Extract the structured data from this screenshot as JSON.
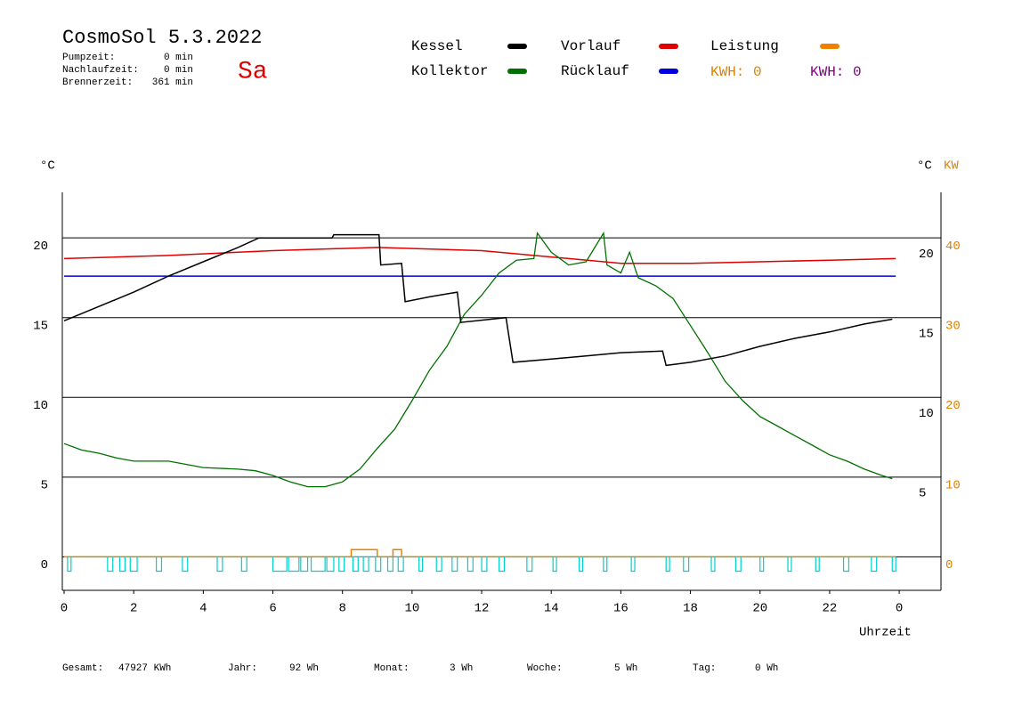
{
  "header": {
    "title": "CosmoSol 5.3.2022",
    "day": "Sa",
    "day_color": "#e00000",
    "stats": [
      {
        "label": "Pumpzeit:",
        "value": "0 min"
      },
      {
        "label": "Nachlaufzeit:",
        "value": "0 min"
      },
      {
        "label": "Brennerzeit:",
        "value": "361 min"
      }
    ],
    "kwh": [
      {
        "text": "KWH: 0",
        "color": "#e08000"
      },
      {
        "text": "KWH: 0",
        "color": "#800080"
      }
    ]
  },
  "chart_data": {
    "type": "line",
    "ylabel": "°C",
    "y2label_c": "°C",
    "y2label": "KW",
    "xlabel": "Uhrzeit",
    "y2color": "#e08000",
    "xlim": [
      0,
      25.2
    ],
    "ylim": [
      -2.1,
      22.8
    ],
    "y2lim": [
      -4.2,
      45.6
    ],
    "xticks": [
      0,
      2,
      4,
      6,
      8,
      10,
      12,
      14,
      16,
      18,
      20,
      22,
      {
        "value": 24,
        "label": "0"
      }
    ],
    "yticks": [
      0,
      5,
      10,
      15,
      20
    ],
    "yticks_right": [
      5,
      10,
      15,
      20
    ],
    "y2ticks": [
      0,
      10,
      20,
      30,
      40
    ],
    "grid": true,
    "series": [
      {
        "name": "Kessel",
        "color": "#000000",
        "x": [
          0,
          1,
          2,
          3,
          4,
          5,
          5.6,
          7.7,
          7.75,
          9.05,
          9.1,
          9.7,
          9.8,
          10.5,
          11.3,
          11.4,
          12.7,
          12.9,
          14,
          15,
          16,
          17.2,
          17.3,
          18,
          19,
          20,
          21,
          22,
          23,
          23.8
        ],
        "values": [
          14.8,
          15.7,
          16.6,
          17.6,
          18.5,
          19.4,
          20,
          20,
          20.2,
          20.2,
          18.3,
          18.4,
          16.0,
          16.3,
          16.6,
          14.7,
          15.0,
          12.2,
          12.4,
          12.6,
          12.8,
          12.9,
          12.0,
          12.2,
          12.6,
          13.2,
          13.7,
          14.1,
          14.6,
          14.9
        ]
      },
      {
        "name": "Kollektor",
        "color": "#007000",
        "x": [
          0,
          0.5,
          1,
          1.5,
          2,
          3,
          3.5,
          4,
          5,
          5.5,
          6,
          6.5,
          7,
          7.5,
          8,
          8.5,
          9,
          9.5,
          10,
          10.5,
          11,
          11.5,
          12,
          12.5,
          13,
          13.5,
          13.6,
          14,
          14.5,
          15,
          15.5,
          15.6,
          16,
          16.25,
          16.5,
          17,
          17.5,
          18,
          18.5,
          19,
          19.5,
          20,
          20.5,
          21,
          21.5,
          22,
          22.5,
          23,
          23.5,
          23.8
        ],
        "values": [
          7.1,
          6.7,
          6.5,
          6.2,
          6.0,
          6.0,
          5.8,
          5.6,
          5.5,
          5.4,
          5.1,
          4.7,
          4.4,
          4.4,
          4.7,
          5.5,
          6.8,
          8.0,
          9.8,
          11.7,
          13.2,
          15.2,
          16.4,
          17.8,
          18.6,
          18.7,
          20.3,
          19.1,
          18.3,
          18.5,
          20.3,
          18.3,
          17.8,
          19.1,
          17.5,
          17.0,
          16.2,
          14.5,
          12.8,
          11.0,
          9.8,
          8.8,
          8.2,
          7.6,
          7.0,
          6.4,
          6.0,
          5.5,
          5.1,
          4.9
        ]
      },
      {
        "name": "Vorlauf",
        "color": "#e00000",
        "x": [
          0,
          3,
          6,
          9,
          12,
          14,
          16,
          18,
          20,
          22,
          23.9
        ],
        "values": [
          18.7,
          18.9,
          19.2,
          19.4,
          19.2,
          18.8,
          18.4,
          18.4,
          18.5,
          18.6,
          18.7
        ]
      },
      {
        "name": "Rücklauf",
        "color": "#0000e0",
        "x": [
          0,
          23.9
        ],
        "values": [
          17.6,
          17.6
        ]
      },
      {
        "name": "Leistung",
        "color": "#f08000",
        "axis": "y2",
        "x": [
          0,
          8.25,
          8.25,
          9.0,
          9.0,
          9.45,
          9.45,
          9.7,
          9.7,
          23.9
        ],
        "values": [
          0,
          0,
          0.9,
          0.9,
          0,
          0,
          0.9,
          0.9,
          0,
          0
        ]
      }
    ],
    "pulses": {
      "color": "#00d0d0",
      "base": 0,
      "level": -0.9,
      "starts": [
        0.1,
        1.25,
        1.6,
        1.9,
        2.65,
        3.4,
        4.4,
        5.1,
        6.0,
        6.45,
        6.8,
        7.1,
        7.55,
        7.9,
        8.3,
        8.6,
        8.95,
        9.3,
        9.6,
        10.2,
        10.7,
        11.15,
        11.6,
        12.0,
        12.5,
        13.3,
        14.05,
        14.8,
        15.5,
        16.3,
        17.3,
        17.8,
        18.6,
        19.3,
        20.0,
        20.8,
        21.6,
        22.4,
        23.2,
        23.8
      ],
      "ends": [
        0.2,
        1.4,
        1.75,
        2.1,
        2.8,
        3.55,
        4.55,
        5.25,
        6.4,
        6.75,
        7.0,
        7.5,
        7.75,
        8.05,
        8.45,
        8.75,
        9.1,
        9.45,
        9.75,
        10.3,
        10.85,
        11.3,
        11.75,
        12.15,
        12.65,
        13.45,
        14.15,
        14.9,
        15.6,
        16.4,
        17.4,
        17.95,
        18.7,
        19.45,
        20.1,
        20.9,
        21.7,
        22.55,
        23.35,
        23.9
      ]
    }
  },
  "footer": [
    {
      "label": "Gesamt:",
      "value": "47927 KWh"
    },
    {
      "label": "Jahr:",
      "value": "92 Wh"
    },
    {
      "label": "Monat:",
      "value": "3 Wh"
    },
    {
      "label": "Woche:",
      "value": "5 Wh"
    },
    {
      "label": "Tag:",
      "value": "0 Wh"
    }
  ]
}
